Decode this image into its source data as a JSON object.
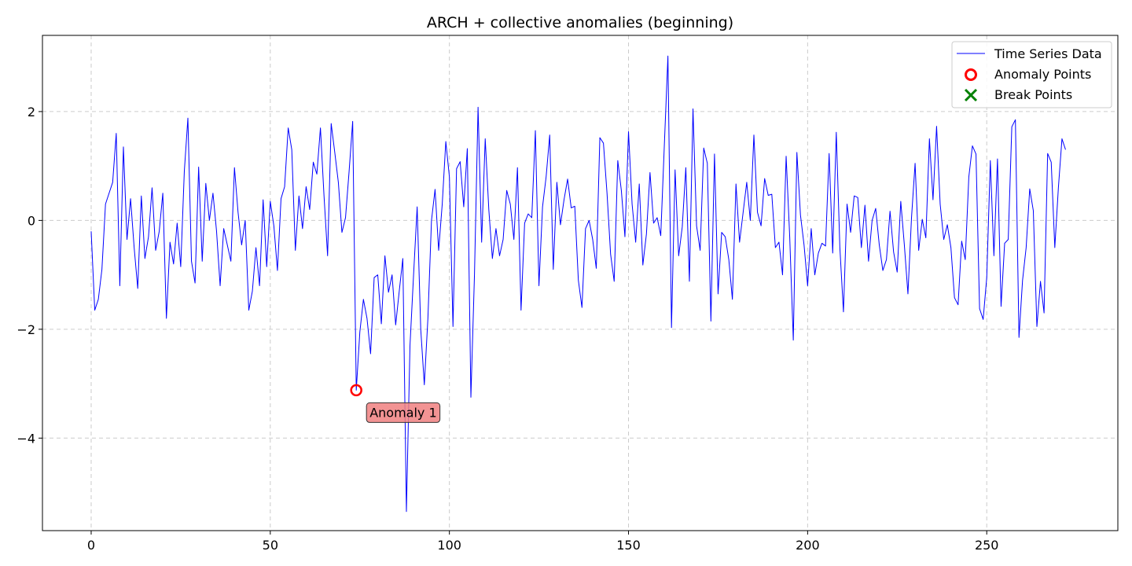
{
  "chart_data": {
    "type": "line",
    "title": "ARCH + collective anomalies (beginning)",
    "xlabel": "",
    "ylabel": "",
    "xlim": [
      -13.6,
      286.6
    ],
    "ylim": [
      -5.7,
      3.4
    ],
    "xticks": [
      0,
      50,
      100,
      150,
      200,
      250
    ],
    "yticks": [
      -4,
      -2,
      0,
      2
    ],
    "grid": true,
    "legend_position": "top-right",
    "legend": [
      "Time Series Data",
      "Anomaly Points",
      "Break Points"
    ],
    "series": [
      {
        "name": "Time Series Data",
        "color": "#0000ff",
        "x_start": 0,
        "y": [
          -0.2,
          -1.65,
          -1.45,
          -0.9,
          0.3,
          0.5,
          0.7,
          1.6,
          -1.2,
          1.35,
          -0.35,
          0.4,
          -0.5,
          -1.25,
          0.45,
          -0.7,
          -0.3,
          0.6,
          -0.55,
          -0.2,
          0.5,
          -1.8,
          -0.4,
          -0.8,
          -0.05,
          -0.85,
          0.9,
          1.88,
          -0.75,
          -1.15,
          0.98,
          -0.75,
          0.68,
          0.0,
          0.5,
          -0.2,
          -1.2,
          -0.15,
          -0.45,
          -0.75,
          0.97,
          0.15,
          -0.45,
          0.0,
          -1.65,
          -1.3,
          -0.5,
          -1.2,
          0.38,
          -0.85,
          0.35,
          -0.1,
          -0.92,
          0.4,
          0.62,
          1.7,
          1.3,
          -0.55,
          0.45,
          -0.15,
          0.62,
          0.2,
          1.07,
          0.85,
          1.7,
          0.45,
          -0.65,
          1.78,
          1.25,
          0.7,
          -0.22,
          0.05,
          0.9,
          1.82,
          -3.12,
          -2.05,
          -1.45,
          -1.8,
          -2.45,
          -1.05,
          -1.0,
          -1.9,
          -0.65,
          -1.32,
          -1.0,
          -1.92,
          -1.3,
          -0.7,
          -5.35,
          -2.3,
          -1.0,
          0.25,
          -2.0,
          -3.02,
          -1.8,
          0.0,
          0.57,
          -0.55,
          0.3,
          1.45,
          0.8,
          -1.95,
          0.95,
          1.08,
          0.25,
          1.32,
          -3.25,
          -1.0,
          2.08,
          -0.4,
          1.5,
          0.2,
          -0.7,
          -0.15,
          -0.65,
          -0.35,
          0.55,
          0.3,
          -0.35,
          0.97,
          -1.65,
          -0.05,
          0.12,
          0.05,
          1.65,
          -1.2,
          0.25,
          0.8,
          1.57,
          -0.9,
          0.7,
          -0.08,
          0.38,
          0.76,
          0.23,
          0.26,
          -1.1,
          -1.6,
          -0.15,
          0.0,
          -0.35,
          -0.88,
          1.52,
          1.42,
          0.5,
          -0.62,
          -1.12,
          1.1,
          0.55,
          -0.3,
          1.63,
          0.3,
          -0.4,
          0.67,
          -0.82,
          -0.25,
          0.88,
          -0.05,
          0.05,
          -0.28,
          1.38,
          3.02,
          -1.97,
          0.93,
          -0.65,
          -0.12,
          0.97,
          -1.12,
          2.05,
          -0.1,
          -0.55,
          1.33,
          1.05,
          -1.85,
          1.22,
          -1.35,
          -0.22,
          -0.3,
          -0.72,
          -1.45,
          0.67,
          -0.4,
          0.15,
          0.7,
          0.0,
          1.57,
          0.15,
          -0.1,
          0.77,
          0.46,
          0.48,
          -0.5,
          -0.4,
          -1.0,
          1.18,
          -0.3,
          -2.2,
          1.25,
          0.1,
          -0.45,
          -1.2,
          -0.15,
          -1.0,
          -0.6,
          -0.42,
          -0.47,
          1.23,
          -0.6,
          1.62,
          -0.5,
          -1.68,
          0.3,
          -0.22,
          0.45,
          0.42,
          -0.5,
          0.28,
          -0.75,
          0.0,
          0.22,
          -0.45,
          -0.92,
          -0.72,
          0.17,
          -0.58,
          -0.95,
          0.35,
          -0.45,
          -1.35,
          0.05,
          1.05,
          -0.55,
          0.02,
          -0.32,
          1.5,
          0.38,
          1.73,
          0.3,
          -0.35,
          -0.08,
          -0.5,
          -1.42,
          -1.55,
          -0.38,
          -0.72,
          0.8,
          1.37,
          1.22,
          -1.62,
          -1.82,
          -1.05,
          1.1,
          -0.65,
          1.13,
          -1.58,
          -0.42,
          -0.35,
          1.72,
          1.85,
          -2.15,
          -1.1,
          -0.5,
          0.58,
          0.18,
          -1.95,
          -1.12,
          -1.7,
          1.23,
          1.07,
          -0.5,
          0.6,
          1.5,
          1.3
        ]
      }
    ],
    "anomaly_points": [
      {
        "x": 74,
        "y": -3.12,
        "label": "Anomaly 1"
      }
    ],
    "break_points": [],
    "colors": {
      "line": "#0000ff",
      "anomaly_marker": "#ff0000",
      "break_marker": "#008000",
      "annotation_fill": "#f08080",
      "grid": "#cccccc"
    }
  }
}
